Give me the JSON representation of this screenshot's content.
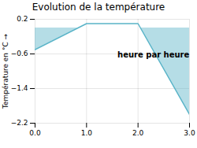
{
  "chart_data": {
    "type": "line",
    "title": "Evolution de la température",
    "ylabel": "Température en °C",
    "x": [
      0,
      1,
      2,
      3
    ],
    "series": [
      {
        "values": [
          -0.5,
          0.1,
          0.1,
          -2.0
        ],
        "color": "#5ab4c8"
      }
    ],
    "xlim": [
      0,
      3
    ],
    "ylim": [
      -2.2,
      0.2
    ],
    "xticks": [
      0,
      1,
      2,
      3
    ],
    "yticks": [
      0.2,
      -0.6,
      -1.4,
      -2.2
    ],
    "grid": true,
    "annotations": [
      {
        "text": "heure par heure",
        "x": 1.6,
        "y": -0.55
      }
    ]
  }
}
